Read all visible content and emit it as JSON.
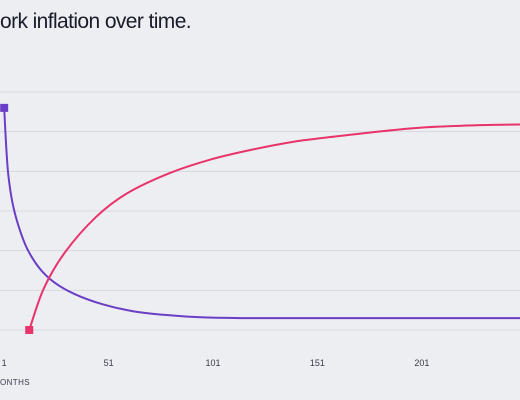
{
  "chart_data": {
    "type": "line",
    "title": "ork inflation over time.",
    "xlabel": "ONTHS",
    "ylabel": "",
    "x_tick_labels": [
      "1",
      "51",
      "101",
      "151",
      "201"
    ],
    "x_ticks": [
      1,
      51,
      101,
      151,
      201
    ],
    "xlim": [
      -1,
      248
    ],
    "ylim": [
      0,
      6
    ],
    "grid": true,
    "legend": "none",
    "series": [
      {
        "color": "#6a3fc6",
        "marker": "square",
        "x": [
          1,
          2,
          3,
          5,
          8,
          12,
          18,
          25,
          35,
          48,
          62,
          78,
          95,
          115,
          135,
          160,
          190,
          220,
          248
        ],
        "y": [
          5.6,
          4.6,
          3.9,
          3.2,
          2.6,
          2.05,
          1.55,
          1.2,
          0.9,
          0.65,
          0.48,
          0.38,
          0.32,
          0.3,
          0.3,
          0.3,
          0.3,
          0.3,
          0.3
        ]
      },
      {
        "color": "#e8336b",
        "marker": "square",
        "x": [
          13,
          20,
          30,
          45,
          60,
          80,
          100,
          120,
          140,
          160,
          180,
          200,
          220,
          235,
          248
        ],
        "y": [
          0,
          1.05,
          1.95,
          2.85,
          3.45,
          3.95,
          4.3,
          4.55,
          4.75,
          4.88,
          5.0,
          5.1,
          5.15,
          5.17,
          5.18
        ]
      }
    ]
  }
}
